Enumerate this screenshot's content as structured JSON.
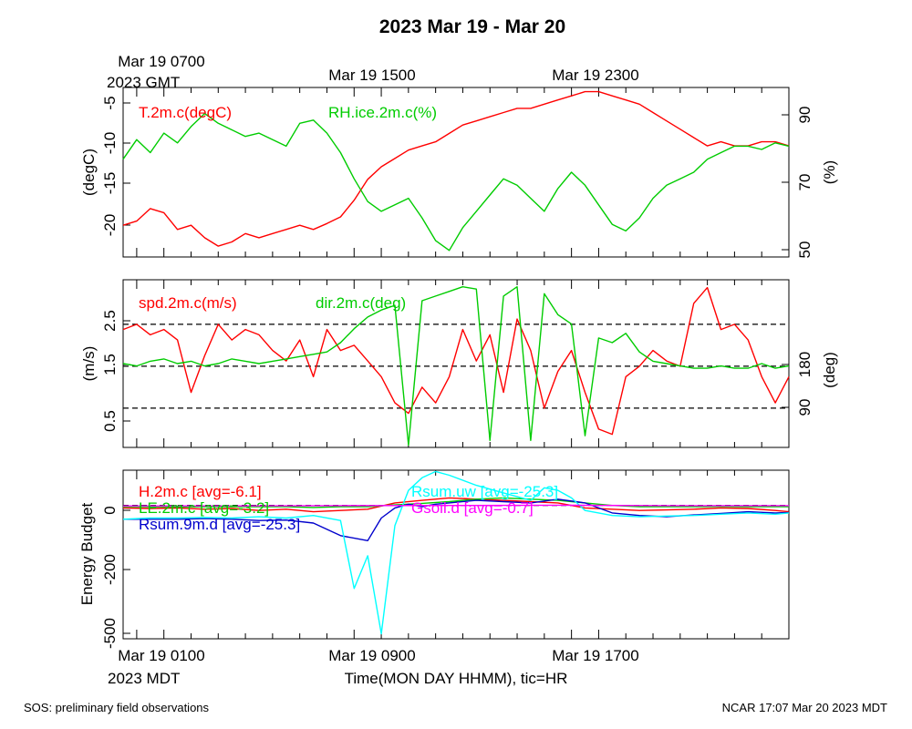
{
  "title": "2023 Mar 19 - Mar 20",
  "top_axis": {
    "labels": [
      "Mar 19 0700",
      "Mar 19 1500",
      "Mar 19 2300"
    ],
    "sublabel": "2023 GMT"
  },
  "bottom_axis": {
    "labels": [
      "Mar 19 0100",
      "Mar 19 0900",
      "Mar 19 1700"
    ],
    "sublabel": "2023 MDT",
    "xlabel": "Time(MON DAY HHMM), tic=HR"
  },
  "footer_left": "SOS: preliminary field observations",
  "footer_right": "NCAR 17:07 Mar 20 2023 MDT",
  "chart_data": [
    {
      "type": "line",
      "panel": "temperature-humidity",
      "x_unit": "hours since Mar 19 0000 MDT",
      "xlim": [
        0.0,
        24.5
      ],
      "ylabel_left": "(degC)",
      "ylabel_right": "(%)",
      "ylim_left": [
        -23.8,
        -3.5
      ],
      "ylim_right": [
        48,
        100
      ],
      "yticks_left": [
        "-5",
        "-10",
        "-15",
        "-20"
      ],
      "yticks_right": [
        "90",
        "70",
        "50"
      ],
      "series": [
        {
          "name": "T.2m.c(degC)",
          "axis": "left",
          "color": "#ff0000",
          "x": [
            0,
            0.5,
            1,
            1.5,
            2,
            2.5,
            3,
            3.5,
            4,
            4.5,
            5,
            5.5,
            6,
            6.5,
            7,
            7.5,
            8,
            8.5,
            9,
            9.5,
            10,
            10.5,
            11,
            11.5,
            12,
            12.5,
            13,
            13.5,
            14,
            14.5,
            15,
            15.5,
            16,
            16.5,
            17,
            17.5,
            18,
            18.5,
            19,
            19.5,
            20,
            20.5,
            21,
            21.5,
            22,
            22.5,
            23,
            23.5,
            24,
            24.5
          ],
          "values": [
            -20,
            -19.5,
            -18,
            -18.5,
            -20.5,
            -20,
            -21.5,
            -22.5,
            -22,
            -21,
            -21.5,
            -21,
            -20.5,
            -20,
            -20.5,
            -19.8,
            -19,
            -17,
            -14.5,
            -13,
            -12,
            -11,
            -10.5,
            -10,
            -9,
            -8,
            -7.5,
            -7,
            -6.5,
            -6,
            -6,
            -5.5,
            -5,
            -4.5,
            -4,
            -4,
            -4.5,
            -5,
            -5.5,
            -6.5,
            -7.5,
            -8.5,
            -9.5,
            -10.5,
            -10,
            -10.5,
            -10.5,
            -10,
            -10,
            -10.5
          ]
        },
        {
          "name": "RH.ice.2m.c(%)",
          "axis": "right",
          "color": "#00cc00",
          "x": [
            0,
            0.5,
            1,
            1.5,
            2,
            2.5,
            3,
            3.5,
            4,
            4.5,
            5,
            5.5,
            6,
            6.5,
            7,
            7.5,
            8,
            8.5,
            9,
            9.5,
            10,
            10.5,
            11,
            11.5,
            12,
            12.5,
            13,
            13.5,
            14,
            14.5,
            15,
            15.5,
            16,
            16.5,
            17,
            17.5,
            18,
            18.5,
            19,
            19.5,
            20,
            20.5,
            21,
            21.5,
            22,
            22.5,
            23,
            23.5,
            24,
            24.5
          ],
          "values": [
            78,
            84,
            80,
            86,
            83,
            88,
            92,
            89,
            87,
            85,
            86,
            84,
            82,
            89,
            90,
            86,
            80,
            72,
            65,
            62,
            64,
            66,
            60,
            53,
            50,
            57,
            62,
            67,
            72,
            70,
            66,
            62,
            69,
            74,
            70,
            64,
            58,
            56,
            60,
            66,
            70,
            72,
            74,
            78,
            80,
            82,
            82,
            81,
            83,
            82
          ]
        }
      ]
    },
    {
      "type": "line",
      "panel": "wind",
      "x_unit": "hours since Mar 19 0000 MDT",
      "xlim": [
        0.0,
        24.5
      ],
      "ylabel_left": "(m/s)",
      "ylabel_right": "(deg)",
      "ylim_left": [
        0.15,
        3.35
      ],
      "ylim_right": [
        15,
        375
      ],
      "yticks_left": [
        "2.5",
        "1.5",
        "0.5"
      ],
      "yticks_right": [
        "180",
        "90"
      ],
      "reference_lines": [
        2.5,
        1.7,
        0.9
      ],
      "series": [
        {
          "name": "spd.2m.c(m/s)",
          "axis": "left",
          "color": "#ff0000",
          "x": [
            0,
            0.5,
            1,
            1.5,
            2,
            2.5,
            3,
            3.5,
            4,
            4.5,
            5,
            5.5,
            6,
            6.5,
            7,
            7.5,
            8,
            8.5,
            9,
            9.5,
            10,
            10.5,
            11,
            11.5,
            12,
            12.5,
            13,
            13.5,
            14,
            14.5,
            15,
            15.5,
            16,
            16.5,
            17,
            17.5,
            18,
            18.5,
            19,
            19.5,
            20,
            20.5,
            21,
            21.5,
            22,
            22.5,
            23,
            23.5,
            24,
            24.5
          ],
          "values": [
            2.4,
            2.5,
            2.3,
            2.4,
            2.2,
            1.2,
            1.9,
            2.5,
            2.2,
            2.4,
            2.3,
            2.0,
            1.8,
            2.2,
            1.5,
            2.4,
            2.0,
            2.1,
            1.8,
            1.5,
            1.0,
            0.8,
            1.3,
            1.0,
            1.5,
            2.4,
            1.8,
            2.3,
            1.2,
            2.6,
            2.0,
            0.9,
            1.6,
            2.0,
            1.2,
            0.5,
            0.4,
            1.5,
            1.7,
            2.0,
            1.8,
            1.7,
            2.9,
            3.2,
            2.4,
            2.5,
            2.2,
            1.5,
            1.0,
            1.5
          ]
        },
        {
          "name": "dir.2m.c(deg)",
          "axis": "right",
          "color": "#00cc00",
          "x": [
            0,
            0.5,
            1,
            1.5,
            2,
            2.5,
            3,
            3.5,
            4,
            4.5,
            5,
            5.5,
            6,
            6.5,
            7,
            7.5,
            8,
            8.5,
            9,
            9.5,
            10,
            10.5,
            11,
            11.5,
            12,
            12.5,
            13,
            13.5,
            14,
            14.5,
            15,
            15.5,
            16,
            16.5,
            17,
            17.5,
            18,
            18.5,
            19,
            19.5,
            20,
            20.5,
            21,
            21.5,
            22,
            22.5,
            23,
            23.5,
            24,
            24.5
          ],
          "values": [
            195,
            190,
            200,
            205,
            195,
            200,
            190,
            195,
            205,
            200,
            195,
            200,
            205,
            210,
            215,
            220,
            240,
            270,
            295,
            310,
            320,
            20,
            330,
            340,
            350,
            360,
            355,
            30,
            340,
            360,
            30,
            345,
            300,
            280,
            40,
            250,
            240,
            260,
            220,
            200,
            195,
            190,
            185,
            185,
            190,
            185,
            185,
            195,
            185,
            190
          ]
        }
      ]
    },
    {
      "type": "line",
      "panel": "energy-budget",
      "x_unit": "hours since Mar 19 0000 MDT",
      "xlim": [
        0.0,
        24.5
      ],
      "ylabel": "Energy Budget",
      "ylim": [
        -530,
        140
      ],
      "yticks": [
        "0",
        "-200",
        "-500"
      ],
      "reference_lines": [
        0
      ],
      "series": [
        {
          "name": "H.2m.c [avg=-6.1]",
          "color": "#ff0000",
          "x": [
            0,
            1,
            2,
            3,
            4,
            5,
            6,
            7,
            8,
            9,
            10,
            11,
            12,
            13,
            14,
            15,
            16,
            17,
            18,
            19,
            20,
            21,
            22,
            23,
            24,
            24.5
          ],
          "values": [
            -10,
            -12,
            -10,
            -15,
            -12,
            -20,
            -15,
            -25,
            -20,
            -15,
            10,
            20,
            30,
            25,
            20,
            15,
            10,
            -10,
            -15,
            -20,
            -18,
            -15,
            -10,
            -12,
            -20,
            -25
          ]
        },
        {
          "name": "LE.2m.c [avg=-3.2]",
          "color": "#00cc00",
          "x": [
            0,
            1,
            2,
            3,
            4,
            5,
            6,
            7,
            8,
            9,
            10,
            11,
            12,
            13,
            14,
            15,
            16,
            17,
            18,
            19,
            20,
            21,
            22,
            23,
            24,
            24.5
          ],
          "values": [
            -5,
            -5,
            -6,
            -5,
            -5,
            -5,
            -5,
            -8,
            -5,
            -5,
            2,
            8,
            15,
            25,
            30,
            25,
            20,
            10,
            0,
            -5,
            -5,
            -5,
            -4,
            -5,
            -5,
            -5
          ]
        },
        {
          "name": "Rsum.9m.d [avg=-25.3]",
          "color": "#0000cc",
          "x": [
            0,
            1,
            2,
            3,
            4,
            5,
            6,
            7,
            8,
            9,
            9.5,
            10,
            10.5,
            11,
            11.5,
            12,
            13,
            14,
            15,
            16,
            17,
            18,
            19,
            20,
            21,
            22,
            23,
            24,
            24.5
          ],
          "values": [
            -55,
            -55,
            -55,
            -52,
            -55,
            -60,
            -58,
            -70,
            -120,
            -140,
            -50,
            -10,
            5,
            -5,
            5,
            10,
            20,
            15,
            10,
            25,
            10,
            -30,
            -40,
            -45,
            -38,
            -32,
            -25,
            -30,
            -28
          ]
        },
        {
          "name": "Rsum.uw [avg=-25.3]",
          "color": "#00ffff",
          "x": [
            0,
            1,
            2,
            3,
            4,
            5,
            6,
            7,
            8,
            8.5,
            9,
            9.5,
            10,
            10.5,
            11,
            11.5,
            12,
            13,
            14,
            15,
            15.5,
            16,
            16.5,
            17,
            18,
            19,
            20,
            21,
            22,
            23,
            24,
            24.5
          ],
          "values": [
            -55,
            -50,
            -50,
            -48,
            -50,
            -45,
            -50,
            -40,
            -60,
            -330,
            -200,
            -510,
            -80,
            60,
            110,
            135,
            120,
            80,
            50,
            20,
            70,
            60,
            30,
            -20,
            -40,
            -45,
            -42,
            -40,
            -35,
            -30,
            -35,
            -30
          ]
        },
        {
          "name": "Gsoil.d [avg=-0.7]",
          "color": "#ff00ff",
          "x": [
            0,
            4,
            8,
            12,
            16,
            20,
            24.5
          ],
          "values": [
            -2,
            -2,
            -1,
            0,
            1,
            -1,
            -1
          ]
        }
      ]
    }
  ]
}
